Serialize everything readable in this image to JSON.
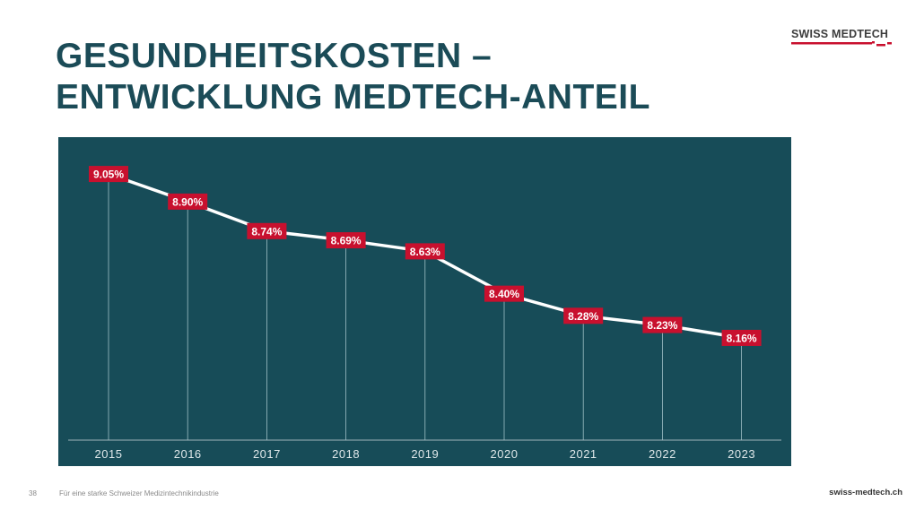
{
  "title_line1": "GESUNDHEITSKOSTEN –",
  "title_line2": "ENTWICKLUNG MEDTECH-ANTEIL",
  "logo_text": "SWISS MEDTECH",
  "footer": {
    "page": "38",
    "tagline": "Für eine starke Schweizer Medizintechnikindustrie",
    "site": "swiss-medtech.ch"
  },
  "colors": {
    "panel": "#174c58",
    "label": "#c8102e",
    "line": "#ffffff"
  },
  "chart_data": {
    "type": "line",
    "title": "",
    "categories": [
      "2015",
      "2016",
      "2017",
      "2018",
      "2019",
      "2020",
      "2021",
      "2022",
      "2023"
    ],
    "values": [
      9.05,
      8.9,
      8.74,
      8.69,
      8.63,
      8.4,
      8.28,
      8.23,
      8.16
    ],
    "labels": [
      "9.05%",
      "8.90%",
      "8.74%",
      "8.69%",
      "8.63%",
      "8.40%",
      "8.28%",
      "8.23%",
      "8.16%"
    ],
    "ylim": [
      7.605,
      9.25
    ],
    "grid": false,
    "xlabel": "",
    "ylabel": ""
  }
}
